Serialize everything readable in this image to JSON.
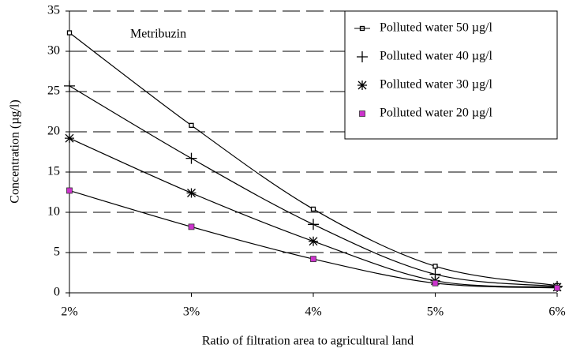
{
  "chart_data": {
    "type": "line",
    "annotation": "Metribuzin",
    "x_label": "Ratio of filtration area to agricultural land",
    "y_label": "Concentration (µg/l)",
    "x": [
      2,
      3,
      4,
      5,
      6
    ],
    "xlim": [
      2,
      6
    ],
    "xticks": [
      {
        "value": 2,
        "label": "2%"
      },
      {
        "value": 3,
        "label": "3%"
      },
      {
        "value": 4,
        "label": "4%"
      },
      {
        "value": 5,
        "label": "5%"
      },
      {
        "value": 6,
        "label": "6%"
      }
    ],
    "ylim": [
      0,
      35
    ],
    "yticks": [
      0,
      5,
      10,
      15,
      20,
      25,
      30,
      35
    ],
    "grid": true,
    "legend": "upper right",
    "series": [
      {
        "name": "Polluted water 50 µg/l",
        "color": "#000000",
        "marker": "square",
        "values": [
          32.3,
          20.8,
          10.4,
          3.3,
          0.9
        ]
      },
      {
        "name": "Polluted water 40 µg/l",
        "color": "#000000",
        "marker": "plus",
        "values": [
          25.7,
          16.7,
          8.5,
          2.3,
          0.8
        ]
      },
      {
        "name": "Polluted water 30 µg/l",
        "color": "#000000",
        "marker": "star",
        "values": [
          19.2,
          12.4,
          6.4,
          1.5,
          0.7
        ]
      },
      {
        "name": "Polluted water 20 µg/l",
        "color": "#cc33cc",
        "marker": "filled-square",
        "values": [
          12.7,
          8.2,
          4.2,
          1.2,
          0.6
        ]
      }
    ]
  }
}
